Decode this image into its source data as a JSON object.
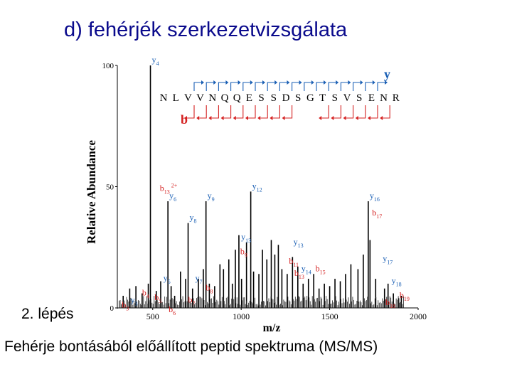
{
  "slide": {
    "title": "d) fehérjék szerkezetvizsgálata",
    "step_label": "2. lépés",
    "caption": "Fehérje bontásából előállított peptid spektruma (MS/MS)"
  },
  "colors": {
    "title": "#0a0a8c",
    "ion_red": "#d42020",
    "ion_blue": "#1a5fb4",
    "bars": "#000000"
  },
  "chart_data": {
    "type": "bar",
    "title": "",
    "xlabel": "m/z",
    "ylabel": "Relative Abundance",
    "xlim": [
      300,
      2000
    ],
    "ylim": [
      0,
      100
    ],
    "x_ticks": [
      "500",
      "1000",
      "1500",
      "2000"
    ],
    "y_ticks": [
      "0",
      "50",
      "100"
    ],
    "sequence": [
      "N",
      "L",
      "V",
      "V",
      "N",
      "Q",
      "Q",
      "E",
      "S",
      "S",
      "D",
      "S",
      "G",
      "T",
      "S",
      "V",
      "S",
      "E",
      "N",
      "R"
    ],
    "y_series_label": "y",
    "b_series_label": "b",
    "peaks": [
      {
        "mz": 333,
        "intensity": 5
      },
      {
        "mz": 370,
        "intensity": 8
      },
      {
        "mz": 405,
        "intensity": 9
      },
      {
        "mz": 440,
        "intensity": 6
      },
      {
        "mz": 475,
        "intensity": 10
      },
      {
        "mz": 487,
        "intensity": 100,
        "label": "y",
        "sub": "4",
        "kind": "y"
      },
      {
        "mz": 520,
        "intensity": 7
      },
      {
        "mz": 545,
        "intensity": 11
      },
      {
        "mz": 586,
        "intensity": 44,
        "label": "y",
        "sub": "6",
        "kind": "y"
      },
      {
        "mz": 604,
        "intensity": 9
      },
      {
        "mz": 624,
        "intensity": 5
      },
      {
        "mz": 657,
        "intensity": 15
      },
      {
        "mz": 686,
        "intensity": 12
      },
      {
        "mz": 700,
        "intensity": 35,
        "label": "y",
        "sub": "8",
        "kind": "y"
      },
      {
        "mz": 725,
        "intensity": 8
      },
      {
        "mz": 758,
        "intensity": 12
      },
      {
        "mz": 786,
        "intensity": 16
      },
      {
        "mz": 801,
        "intensity": 44,
        "label": "y",
        "sub": "9",
        "kind": "y"
      },
      {
        "mz": 820,
        "intensity": 10
      },
      {
        "mz": 850,
        "intensity": 9
      },
      {
        "mz": 880,
        "intensity": 18
      },
      {
        "mz": 900,
        "intensity": 16
      },
      {
        "mz": 930,
        "intensity": 20
      },
      {
        "mz": 950,
        "intensity": 10
      },
      {
        "mz": 967,
        "intensity": 24
      },
      {
        "mz": 987,
        "intensity": 30
      },
      {
        "mz": 1002,
        "intensity": 12
      },
      {
        "mz": 1030,
        "intensity": 27
      },
      {
        "mz": 1054,
        "intensity": 48,
        "label": "y",
        "sub": "12",
        "kind": "y"
      },
      {
        "mz": 1070,
        "intensity": 15
      },
      {
        "mz": 1100,
        "intensity": 14
      },
      {
        "mz": 1120,
        "intensity": 24
      },
      {
        "mz": 1145,
        "intensity": 20
      },
      {
        "mz": 1170,
        "intensity": 28
      },
      {
        "mz": 1190,
        "intensity": 22
      },
      {
        "mz": 1210,
        "intensity": 26
      },
      {
        "mz": 1230,
        "intensity": 16
      },
      {
        "mz": 1260,
        "intensity": 14
      },
      {
        "mz": 1290,
        "intensity": 21
      },
      {
        "mz": 1320,
        "intensity": 17
      },
      {
        "mz": 1350,
        "intensity": 10
      },
      {
        "mz": 1380,
        "intensity": 12
      },
      {
        "mz": 1410,
        "intensity": 14
      },
      {
        "mz": 1440,
        "intensity": 8
      },
      {
        "mz": 1470,
        "intensity": 10
      },
      {
        "mz": 1500,
        "intensity": 9
      },
      {
        "mz": 1530,
        "intensity": 12
      },
      {
        "mz": 1560,
        "intensity": 11
      },
      {
        "mz": 1590,
        "intensity": 14
      },
      {
        "mz": 1620,
        "intensity": 18
      },
      {
        "mz": 1660,
        "intensity": 16
      },
      {
        "mz": 1690,
        "intensity": 22
      },
      {
        "mz": 1718,
        "intensity": 44,
        "label": "y",
        "sub": "16",
        "kind": "y"
      },
      {
        "mz": 1728,
        "intensity": 28
      },
      {
        "mz": 1760,
        "intensity": 12
      },
      {
        "mz": 1810,
        "intensity": 8
      },
      {
        "mz": 1830,
        "intensity": 10
      },
      {
        "mz": 1860,
        "intensity": 6
      },
      {
        "mz": 1890,
        "intensity": 4
      },
      {
        "mz": 1905,
        "intensity": 5
      }
    ],
    "annotations": [
      {
        "text": "b",
        "sub": "13",
        "sup": "2+",
        "kind": "b",
        "mz": 540,
        "intensity": 47
      },
      {
        "text": "y",
        "sub": "13",
        "kind": "y",
        "mz": 1000,
        "intensity": 27
      },
      {
        "text": "b",
        "sub": "9",
        "kind": "b",
        "mz": 995,
        "intensity": 21
      },
      {
        "text": "y",
        "sub": "13",
        "kind": "y",
        "mz": 1295,
        "intensity": 25
      },
      {
        "text": "b",
        "sub": "11",
        "kind": "b",
        "mz": 1270,
        "intensity": 17
      },
      {
        "text": "y",
        "sub": "14",
        "kind": "y",
        "mz": 1340,
        "intensity": 14
      },
      {
        "text": "b",
        "sub": "15",
        "kind": "b",
        "mz": 1420,
        "intensity": 14
      },
      {
        "text": "b",
        "sub": "13",
        "kind": "b",
        "mz": 1300,
        "intensity": 12
      },
      {
        "text": "b",
        "sub": "17",
        "kind": "b",
        "mz": 1740,
        "intensity": 37
      },
      {
        "text": "y",
        "sub": "17",
        "kind": "y",
        "mz": 1800,
        "intensity": 18
      },
      {
        "text": "y",
        "sub": "18",
        "kind": "y",
        "mz": 1850,
        "intensity": 9
      },
      {
        "text": "b",
        "sub": "19",
        "kind": "b",
        "mz": 1895,
        "intensity": 3
      },
      {
        "text": "b",
        "sub": "18",
        "kind": "b",
        "mz": 1815,
        "intensity": 0
      },
      {
        "text": "y",
        "sub": "5",
        "kind": "y",
        "mz": 560,
        "intensity": 10
      },
      {
        "text": "y",
        "sub": "7",
        "kind": "y",
        "mz": 740,
        "intensity": 10
      },
      {
        "text": "b",
        "sub": "8",
        "kind": "b",
        "mz": 800,
        "intensity": 6
      },
      {
        "text": "b",
        "sub": "7",
        "kind": "b",
        "mz": 700,
        "intensity": 1
      },
      {
        "text": "b",
        "sub": "6",
        "kind": "b",
        "mz": 590,
        "intensity": -3
      },
      {
        "text": "b",
        "sub": "5",
        "kind": "b",
        "mz": 510,
        "intensity": 2
      },
      {
        "text": "b",
        "sub": "4",
        "kind": "b",
        "mz": 440,
        "intensity": 4
      },
      {
        "text": "b",
        "sub": "3",
        "kind": "b",
        "mz": 325,
        "intensity": -1
      },
      {
        "text": "y",
        "sub": "3",
        "kind": "y",
        "mz": 375,
        "intensity": 1
      }
    ]
  }
}
